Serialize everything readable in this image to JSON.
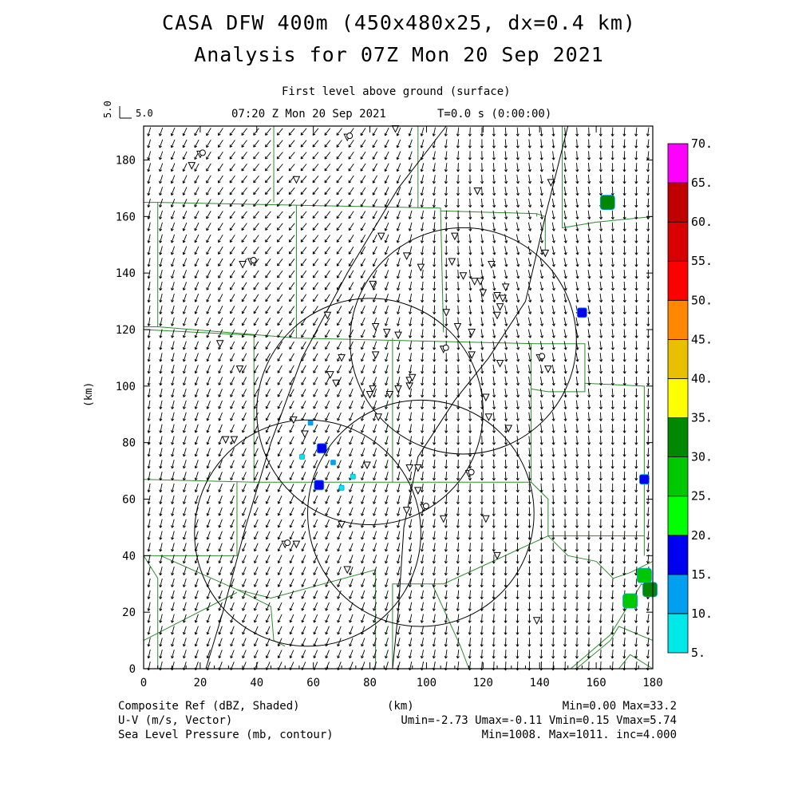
{
  "header": {
    "title_line1": "CASA DFW 400m (450x480x25, dx=0.4 km)",
    "title_line2": "Analysis for 07Z Mon 20 Sep 2021",
    "level": "First level above ground (surface)",
    "time": "07:20 Z Mon 20 Sep 2021",
    "tstep": "T=0.0 s (0:00:00)",
    "vec_ref_label": "5.0",
    "vec_ref_value": "5.0"
  },
  "chart_data": {
    "type": "map",
    "x_ticks": [
      "0",
      "20",
      "40",
      "60",
      "80",
      "100",
      "120",
      "140",
      "160",
      "180"
    ],
    "y_ticks": [
      "0",
      "20",
      "40",
      "60",
      "80",
      "100",
      "120",
      "140",
      "160",
      "180"
    ],
    "xlim": [
      0,
      180
    ],
    "ylim": [
      0,
      192
    ],
    "ylabel": "(km)",
    "xlabel": "(km)",
    "colorbar": {
      "labels": [
        "5.",
        "10.",
        "15.",
        "20.",
        "25.",
        "30.",
        "35.",
        "40.",
        "45.",
        "50.",
        "55.",
        "60.",
        "65.",
        "70."
      ],
      "colors": [
        "#00e8e8",
        "#00a0f0",
        "#0000f0",
        "#00ff00",
        "#00c800",
        "#008800",
        "#ffff00",
        "#e8c000",
        "#ff8800",
        "#ff0000",
        "#d80000",
        "#c00000",
        "#ff00ff"
      ]
    },
    "radar_rings": [
      {
        "cx": 113,
        "cy": 116,
        "r": 40
      },
      {
        "cx": 80,
        "cy": 91,
        "r": 40
      },
      {
        "cx": 98,
        "cy": 55,
        "r": 40
      },
      {
        "cx": 58,
        "cy": 48,
        "r": 40
      }
    ],
    "pressure_contours": [
      {
        "label": "1008",
        "points": [
          [
            107,
            192
          ],
          [
            90,
            170
          ],
          [
            72,
            140
          ],
          [
            56,
            110
          ],
          [
            45,
            80
          ],
          [
            36,
            50
          ],
          [
            28,
            20
          ],
          [
            22,
            0
          ]
        ]
      },
      {
        "label": "1008",
        "points": [
          [
            150,
            192
          ],
          [
            142,
            160
          ],
          [
            135,
            130
          ],
          [
            122,
            110
          ],
          [
            110,
            95
          ],
          [
            97,
            75
          ],
          [
            92,
            50
          ],
          [
            90,
            20
          ],
          [
            88,
            0
          ]
        ]
      }
    ],
    "reflectivity_cells": [
      {
        "x": 164,
        "y": 165,
        "dbz": 30
      },
      {
        "x": 155,
        "y": 126,
        "dbz": 15
      },
      {
        "x": 63,
        "y": 78,
        "dbz": 15
      },
      {
        "x": 67,
        "y": 73,
        "dbz": 10
      },
      {
        "x": 62,
        "y": 65,
        "dbz": 15
      },
      {
        "x": 59,
        "y": 87,
        "dbz": 10
      },
      {
        "x": 177,
        "y": 67,
        "dbz": 15
      },
      {
        "x": 177,
        "y": 33,
        "dbz": 25
      },
      {
        "x": 179,
        "y": 28,
        "dbz": 30
      },
      {
        "x": 172,
        "y": 24,
        "dbz": 25
      },
      {
        "x": 70,
        "y": 64,
        "dbz": 5
      },
      {
        "x": 56,
        "y": 75,
        "dbz": 5
      },
      {
        "x": 74,
        "y": 68,
        "dbz": 5
      }
    ],
    "stations": [
      [
        17,
        178
      ],
      [
        20,
        182
      ],
      [
        35,
        143
      ],
      [
        38,
        144
      ],
      [
        27,
        115
      ],
      [
        34,
        106
      ],
      [
        29,
        81
      ],
      [
        32,
        81
      ],
      [
        72,
        188
      ],
      [
        89,
        191
      ],
      [
        54,
        173
      ],
      [
        118,
        169
      ],
      [
        144,
        172
      ],
      [
        84,
        153
      ],
      [
        110,
        153
      ],
      [
        107,
        126
      ],
      [
        98,
        142
      ],
      [
        93,
        146
      ],
      [
        81,
        136
      ],
      [
        109,
        144
      ],
      [
        113,
        139
      ],
      [
        117,
        137
      ],
      [
        119,
        137
      ],
      [
        120,
        133
      ],
      [
        125,
        132
      ],
      [
        127,
        131
      ],
      [
        128,
        135
      ],
      [
        126,
        128
      ],
      [
        125,
        125
      ],
      [
        116,
        119
      ],
      [
        123,
        143
      ],
      [
        142,
        147
      ],
      [
        82,
        121
      ],
      [
        86,
        119
      ],
      [
        90,
        118
      ],
      [
        65,
        125
      ],
      [
        70,
        110
      ],
      [
        82,
        111
      ],
      [
        66,
        104
      ],
      [
        68,
        101
      ],
      [
        80,
        97
      ],
      [
        81,
        99
      ],
      [
        83,
        89
      ],
      [
        87,
        97
      ],
      [
        90,
        99
      ],
      [
        94,
        100
      ],
      [
        94,
        102
      ],
      [
        95,
        103
      ],
      [
        106,
        113
      ],
      [
        111,
        121
      ],
      [
        116,
        111
      ],
      [
        121,
        96
      ],
      [
        122,
        89
      ],
      [
        126,
        108
      ],
      [
        129,
        85
      ],
      [
        140,
        110
      ],
      [
        143,
        106
      ],
      [
        53,
        88
      ],
      [
        57,
        83
      ],
      [
        79,
        72
      ],
      [
        94,
        71
      ],
      [
        97,
        71
      ],
      [
        97,
        63
      ],
      [
        99,
        57
      ],
      [
        115,
        69
      ],
      [
        106,
        53
      ],
      [
        121,
        53
      ],
      [
        70,
        51
      ],
      [
        93,
        56
      ],
      [
        125,
        40
      ],
      [
        50,
        44
      ],
      [
        54,
        44
      ],
      [
        72,
        35
      ],
      [
        139,
        17
      ]
    ],
    "circles_symbols": [
      [
        72,
        188
      ],
      [
        20,
        182
      ],
      [
        38,
        144
      ],
      [
        106,
        113
      ],
      [
        140,
        110
      ],
      [
        115,
        69
      ],
      [
        99,
        57
      ],
      [
        50,
        44
      ]
    ],
    "wind_stats": {
      "umin": -2.73,
      "umax": -0.11,
      "vmin": 0.15,
      "vmax": 5.74
    },
    "ref_stats": {
      "min": 0.0,
      "max": 33.2
    },
    "slp_stats": {
      "min": 1008,
      "max": 1011,
      "inc": 4.0
    }
  },
  "footer": {
    "field1": "Composite Ref (dBZ, Shaded)",
    "field2": "U-V (m/s, Vector)",
    "field3": "Sea Level Pressure (mb, contour)",
    "xunit": "(km)",
    "stat1": "Min=0.00 Max=33.2",
    "stat2": "Umin=-2.73 Umax=-0.11 Vmin=0.15 Vmax=5.74",
    "stat3": "Min=1008. Max=1011. inc=4.000"
  },
  "colors": {
    "county_lines": "#2e8b2e",
    "vectors": "#000000",
    "axes": "#000000"
  }
}
